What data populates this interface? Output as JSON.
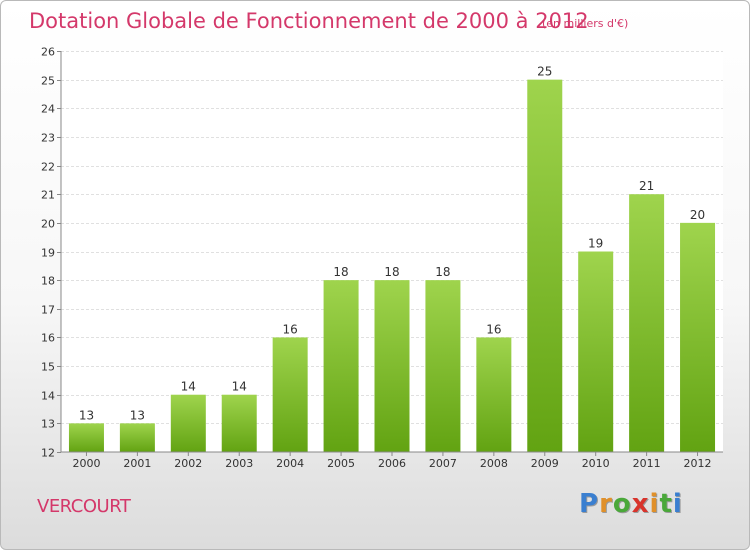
{
  "title": "Dotation Globale de Fonctionnement de 2000 à 2012",
  "unit": "(en milliers d'€)",
  "city": "VERCOURT",
  "logo": {
    "letters": [
      "P",
      "r",
      "o",
      "x",
      "i",
      "t",
      "i"
    ],
    "colors": [
      "#3a7fd0",
      "#e0902a",
      "#4aa83a",
      "#d8342c",
      "#e0902a",
      "#4aa83a",
      "#3a7fd0"
    ]
  },
  "colors": {
    "bar_light": "#9fd44d",
    "bar_dark": "#62a312",
    "title": "#d4386a"
  },
  "chart_data": {
    "type": "bar",
    "categories": [
      "2000",
      "2001",
      "2002",
      "2003",
      "2004",
      "2005",
      "2006",
      "2007",
      "2008",
      "2009",
      "2010",
      "2011",
      "2012"
    ],
    "values": [
      13,
      13,
      14,
      14,
      16,
      18,
      18,
      18,
      16,
      25,
      19,
      21,
      20
    ],
    "ylim": [
      12,
      26
    ],
    "yticks": [
      12,
      13,
      14,
      15,
      16,
      17,
      18,
      19,
      20,
      21,
      22,
      23,
      24,
      25,
      26
    ],
    "grid": true,
    "data_labels": true
  }
}
